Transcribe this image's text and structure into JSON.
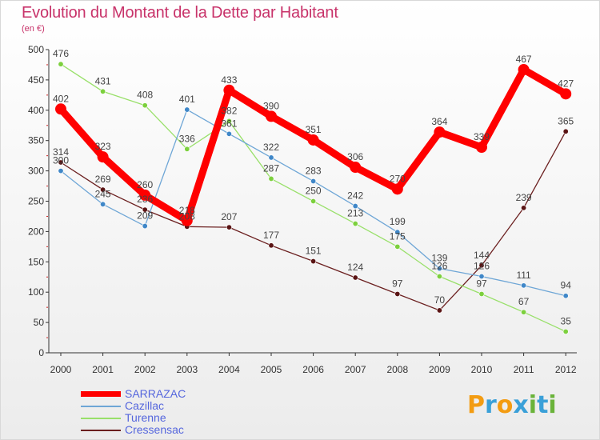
{
  "title": "Evolution du Montant de la Dette par Habitant",
  "subtitle": "(en €)",
  "logo_text": "Proxiti",
  "chart_data": {
    "type": "line",
    "title": "Evolution du Montant de la Dette par Habitant",
    "subtitle": "(en €)",
    "xlabel": "",
    "ylabel": "",
    "categories": [
      "2000",
      "2001",
      "2002",
      "2003",
      "2004",
      "2005",
      "2006",
      "2007",
      "2008",
      "2009",
      "2010",
      "2011",
      "2012"
    ],
    "ylim": [
      0,
      500
    ],
    "yticks": [
      0,
      50,
      100,
      150,
      200,
      250,
      300,
      350,
      400,
      450,
      500
    ],
    "grid": false,
    "legend_position": "bottom-left",
    "series": [
      {
        "name": "Cressensac",
        "color": "#6b1f1f",
        "point_color": "#5a1414",
        "values": [
          314,
          269,
          236,
          208,
          207,
          177,
          151,
          124,
          97,
          70,
          144,
          239,
          365
        ]
      },
      {
        "name": "Turenne",
        "color": "#99e06a",
        "point_color": "#7cd03d",
        "values": [
          476,
          431,
          408,
          336,
          382,
          287,
          250,
          213,
          175,
          126,
          97,
          67,
          35
        ]
      },
      {
        "name": "Cazillac",
        "color": "#6ea6d6",
        "point_color": "#3f87c8",
        "values": [
          300,
          245,
          209,
          401,
          361,
          322,
          283,
          242,
          199,
          139,
          126,
          111,
          94
        ]
      },
      {
        "name": "SARRAZAC",
        "color": "#ff0000",
        "point_color": "#ff0000",
        "values": [
          402,
          323,
          260,
          218,
          433,
          390,
          351,
          306,
          270,
          364,
          339,
          467,
          427
        ]
      }
    ]
  },
  "legend": [
    {
      "name": "SARRAZAC",
      "color": "#ff0000"
    },
    {
      "name": "Cazillac",
      "color": "#6ea6d6"
    },
    {
      "name": "Turenne",
      "color": "#99e06a"
    },
    {
      "name": "Cressensac",
      "color": "#6b1f1f"
    }
  ]
}
